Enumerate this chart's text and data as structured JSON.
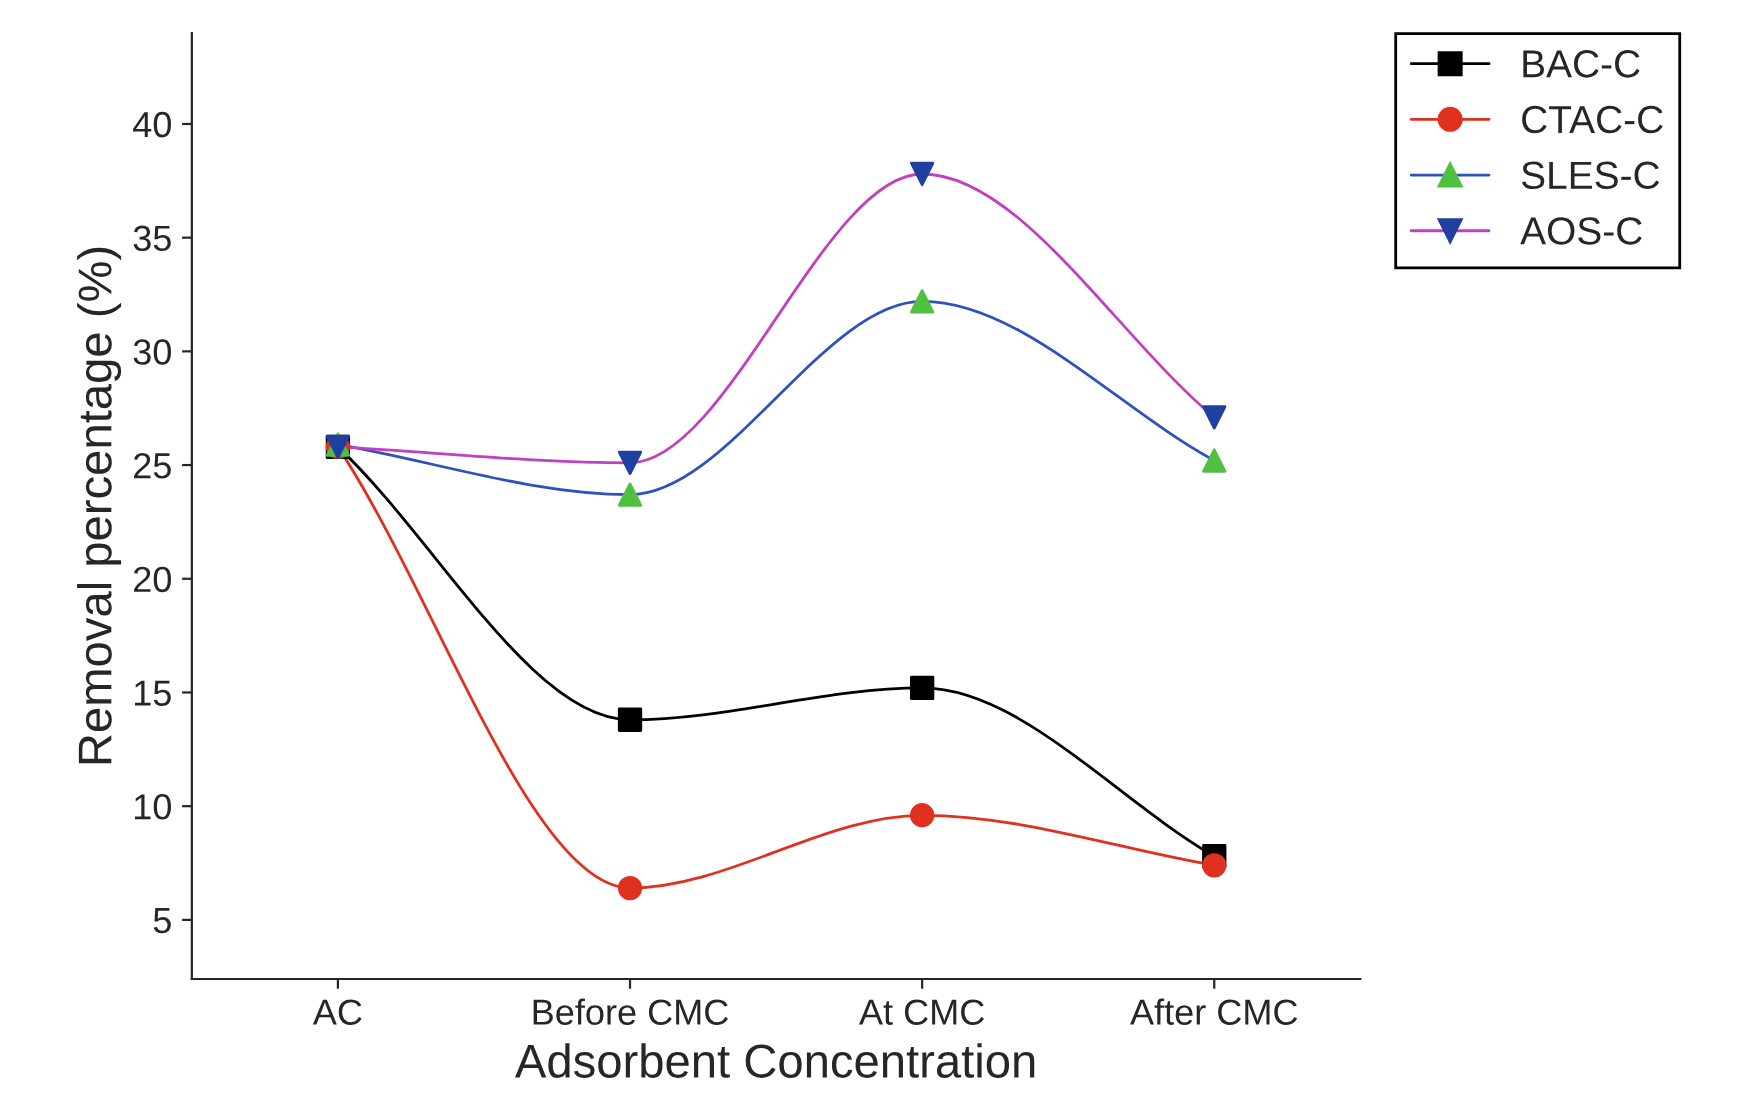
{
  "chart_data": {
    "type": "line",
    "xlabel": "Adsorbent Concentration",
    "ylabel": "Removal percentage (%)",
    "categories": [
      "AC",
      "Before CMC",
      "At CMC",
      "After CMC"
    ],
    "series": [
      {
        "name": "BAC-C",
        "color": "#000000",
        "colors": [
          "#000000",
          "#000000",
          "#000000",
          "#000000"
        ],
        "marker": "square",
        "values": [
          25.8,
          13.8,
          15.2,
          7.8
        ]
      },
      {
        "name": "CTAC-C",
        "color": "#e0301e",
        "colors": [
          "#e0301e",
          "#e0301e",
          "#e0301e",
          "#e0301e"
        ],
        "marker": "circle",
        "values": [
          25.8,
          6.4,
          9.6,
          7.4
        ]
      },
      {
        "name": "SLES-C",
        "color": "#3050c0",
        "colors": [
          "#50c040",
          "#50c040",
          "#50c040",
          "#50c040"
        ],
        "marker": "triangle",
        "values": [
          25.9,
          23.7,
          32.2,
          25.2
        ]
      },
      {
        "name": "AOS-C",
        "color": "#c040c0",
        "colors": [
          "#2040a0",
          "#2040a0",
          "#2040a0",
          "#2040a0"
        ],
        "marker": "triangle-down",
        "values": [
          25.8,
          25.1,
          37.8,
          27.1
        ]
      }
    ],
    "ylim": [
      2.4,
      44
    ],
    "yticks": [
      5,
      10,
      15,
      20,
      25,
      30,
      35,
      40
    ],
    "legend": "top right",
    "grid": false
  }
}
